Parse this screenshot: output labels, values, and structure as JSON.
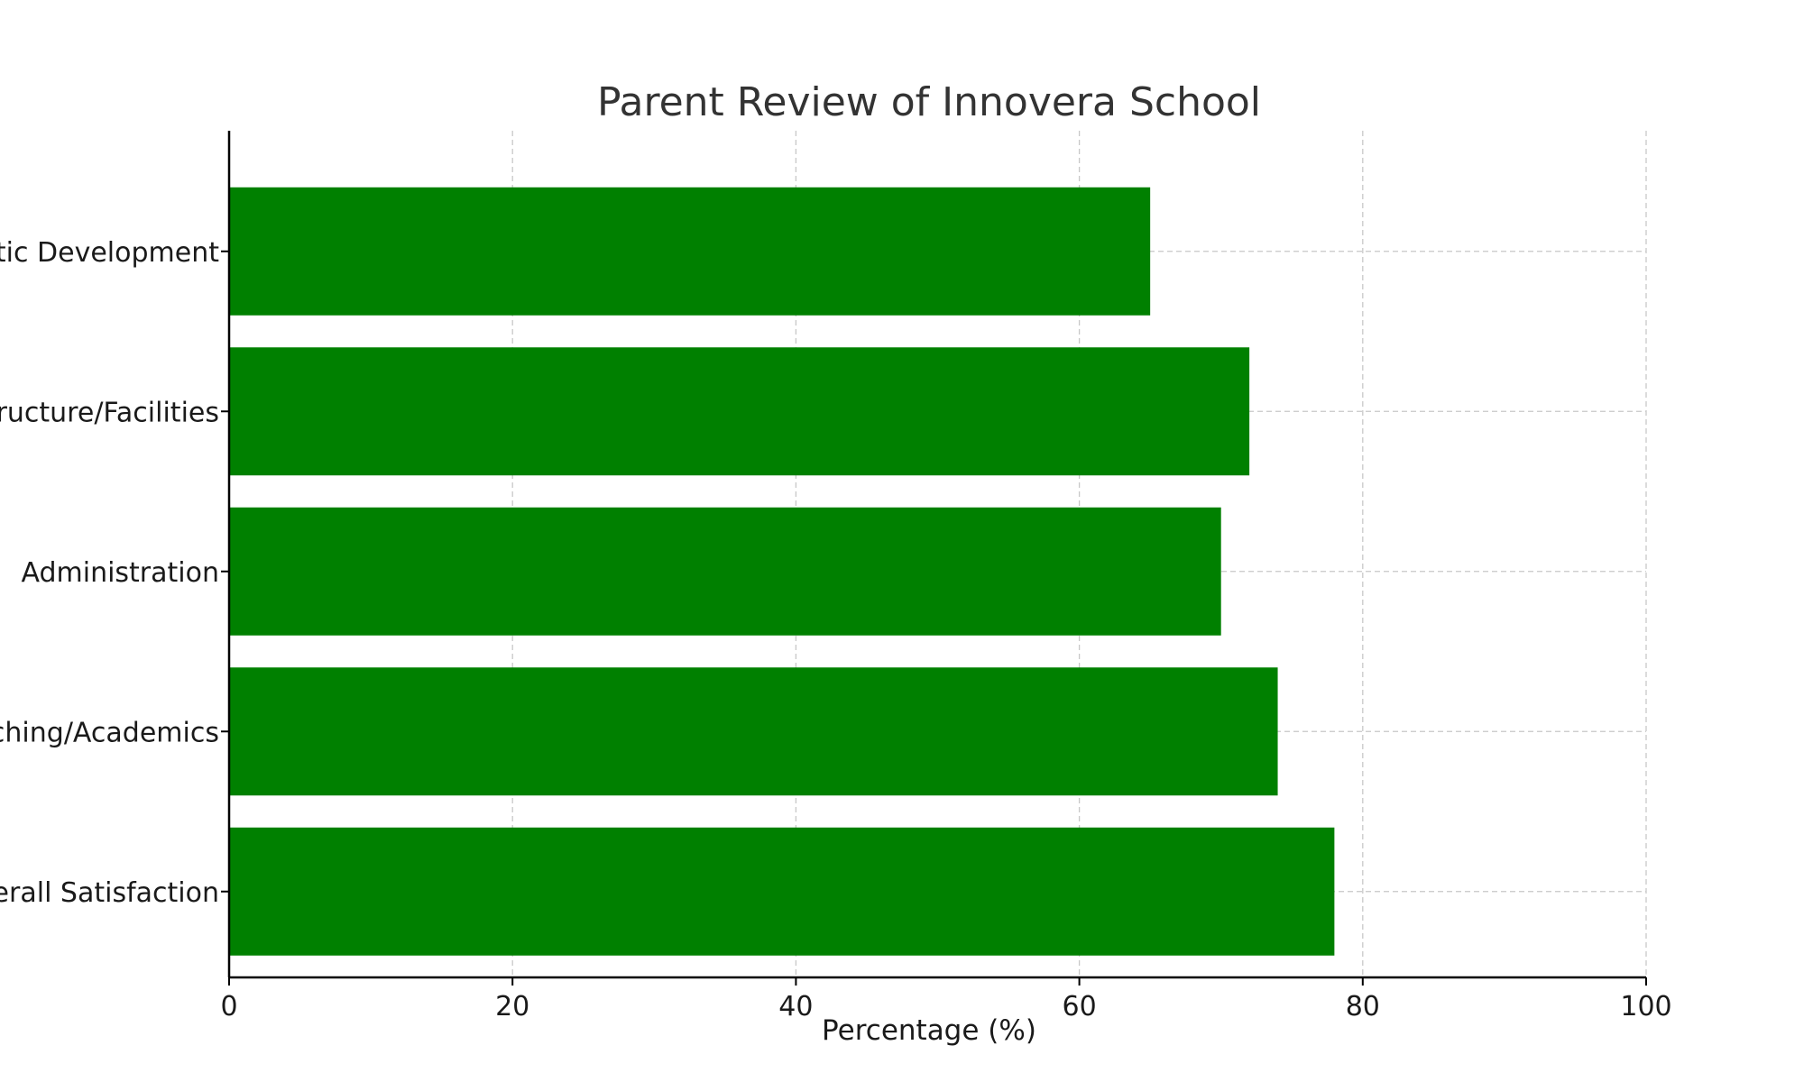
{
  "chart_data": {
    "type": "bar",
    "orientation": "horizontal",
    "title": "Parent Review of Innovera School",
    "xlabel": "Percentage (%)",
    "ylabel": "",
    "xlim": [
      0,
      100
    ],
    "xticks": [
      0,
      20,
      40,
      60,
      80,
      100
    ],
    "categories": [
      "Overall Satisfaction",
      "Teaching/Academics",
      "Administration",
      "Infrastructure/Facilities",
      "Holistic Development"
    ],
    "values": [
      78,
      74,
      70,
      72,
      65
    ],
    "bar_color": "#008000",
    "grid": true
  }
}
